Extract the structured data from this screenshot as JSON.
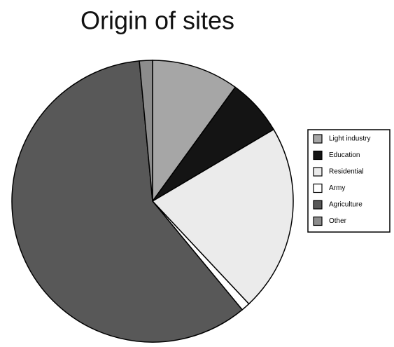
{
  "chart_data": {
    "type": "pie",
    "title": "Origin of sites",
    "categories": [
      "Light industry",
      "Education",
      "Residential",
      "Army",
      "Agriculture",
      "Other"
    ],
    "values": [
      10,
      6.5,
      21.5,
      1,
      59.5,
      1.5
    ],
    "colors": [
      "#a6a6a6",
      "#141414",
      "#ebebeb",
      "#ffffff",
      "#585858",
      "#8c8c8c"
    ],
    "legend": "right"
  }
}
